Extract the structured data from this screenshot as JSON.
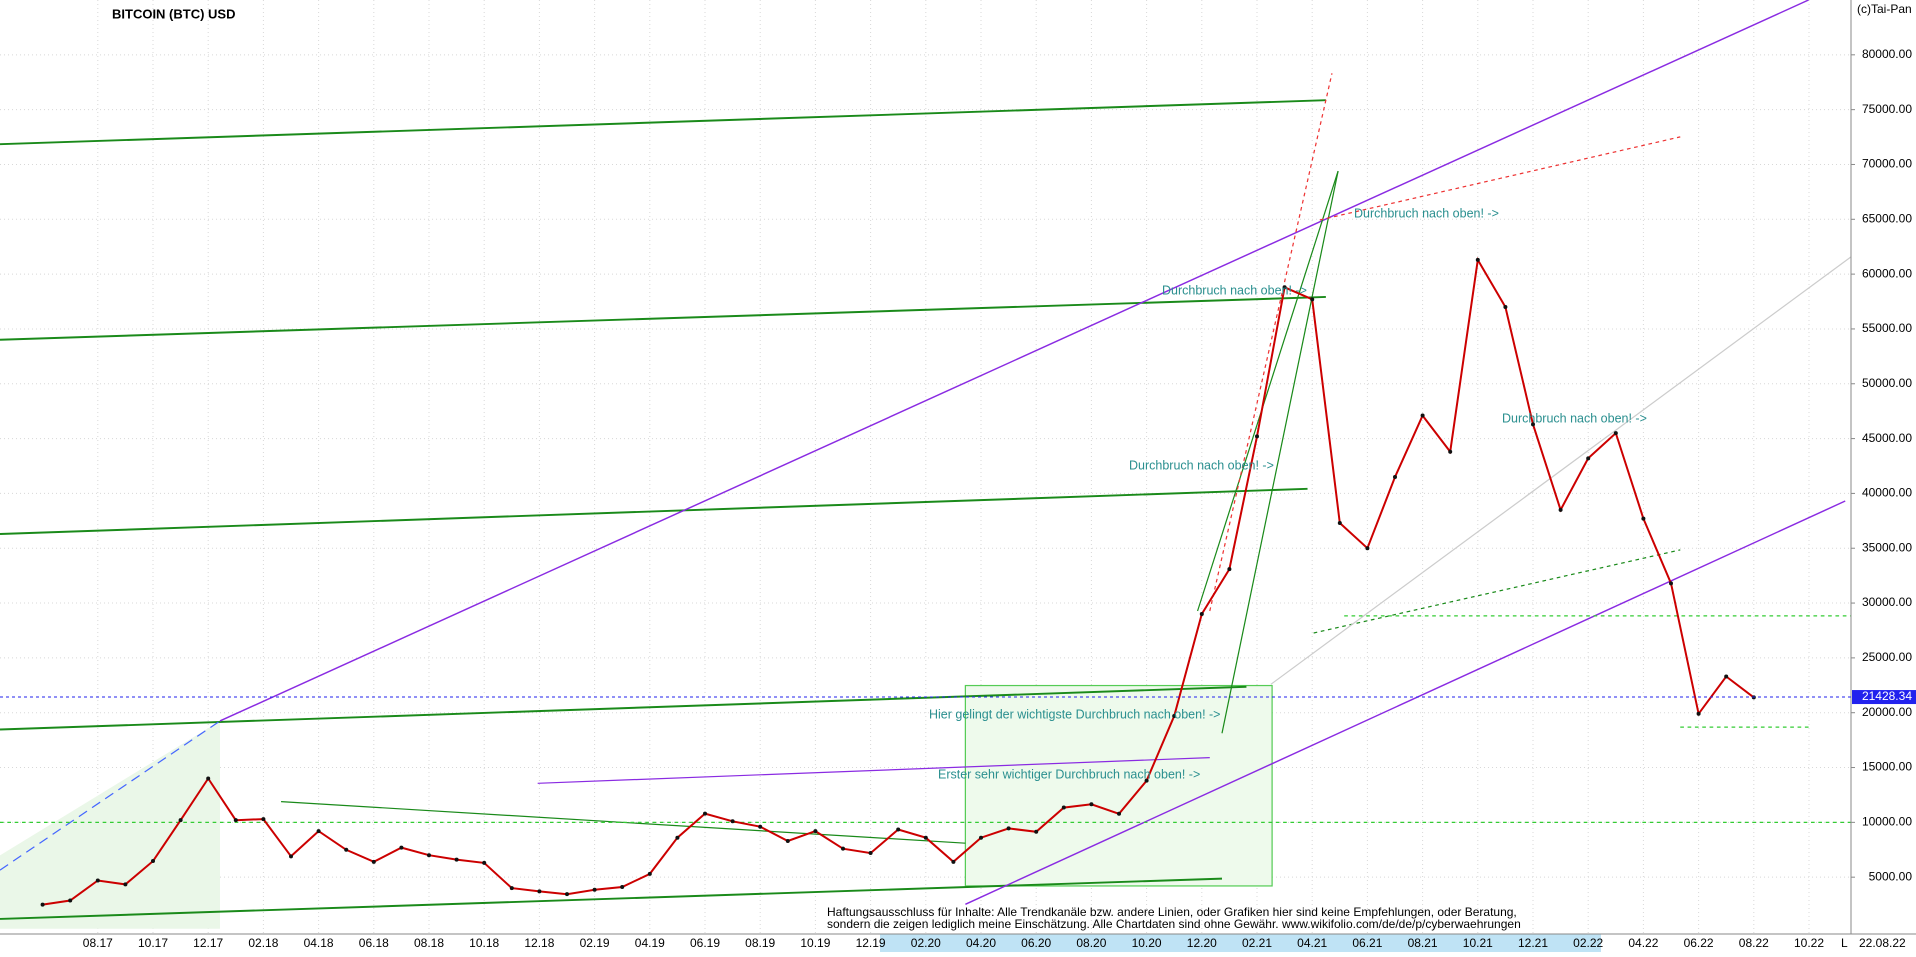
{
  "chart_data": {
    "type": "line",
    "title": "BITCOIN (BTC) USD",
    "source": "(c)Tai-Pan",
    "categories": [
      null,
      null,
      "08.17",
      null,
      "10.17",
      null,
      "12.17",
      null,
      "02.18",
      null,
      "04.18",
      null,
      "06.18",
      null,
      "08.18",
      null,
      "10.18",
      null,
      "12.18",
      null,
      "02.19",
      null,
      "04.19",
      null,
      "06.19",
      null,
      "08.19",
      null,
      "10.19",
      null,
      "12.19",
      null,
      "02.20",
      null,
      "04.20",
      null,
      "06.20",
      null,
      "08.20",
      null,
      "10.20",
      null,
      "12.20",
      null,
      "02.21",
      null,
      "04.21",
      null,
      "06.21",
      null,
      "08.21",
      null,
      "10.21",
      null,
      "12.21",
      null,
      "02.22",
      null,
      "04.22",
      null,
      "06.22",
      null,
      "08.22",
      null,
      "10.22"
    ],
    "values": [
      2500,
      2870,
      4700,
      4340,
      6470,
      10200,
      14000,
      10200,
      10300,
      6900,
      9200,
      7500,
      6400,
      7700,
      7000,
      6600,
      6300,
      4000,
      3700,
      3450,
      3850,
      4100,
      5300,
      8600,
      10800,
      10100,
      9600,
      8300,
      9200,
      7600,
      7200,
      9350,
      8600,
      6400,
      8600,
      9450,
      9140,
      11350,
      11650,
      10780,
      13800,
      19700,
      29000,
      33100,
      45200,
      58800,
      57700,
      37300,
      35000,
      41500,
      47100,
      43800,
      61300,
      57000,
      46300,
      38500,
      43200,
      45500,
      37700,
      31800,
      19900,
      23300,
      21400,
      null,
      null
    ],
    "color": "#cc0000",
    "ylim": [
      0,
      85000
    ],
    "yticks": [
      {
        "value": 5000,
        "label": "5000.00"
      },
      {
        "value": 10000,
        "label": "10000.00"
      },
      {
        "value": 15000,
        "label": "15000.00"
      },
      {
        "value": 20000,
        "label": "20000.00"
      },
      {
        "value": 25000,
        "label": "25000.00"
      },
      {
        "value": 30000,
        "label": "30000.00"
      },
      {
        "value": 35000,
        "label": "35000.00"
      },
      {
        "value": 40000,
        "label": "40000.00"
      },
      {
        "value": 45000,
        "label": "45000.00"
      },
      {
        "value": 50000,
        "label": "50000.00"
      },
      {
        "value": 55000,
        "label": "55000.00"
      },
      {
        "value": 60000,
        "label": "60000.00"
      },
      {
        "value": 65000,
        "label": "65000.00"
      },
      {
        "value": 70000,
        "label": "70000.00"
      },
      {
        "value": 75000,
        "label": "75000.00"
      },
      {
        "value": 80000,
        "label": "80000.00"
      }
    ],
    "last_price": 21428.34,
    "last_date": "22.08.22",
    "scale_mode": "L",
    "grid": true,
    "annotations": [
      "Durchbruch nach oben! ->",
      "Durchbruch nach oben! ->",
      "Durchbruch nach oben! ->",
      "Durchbruch nach oben! ->",
      "Hier gelingt der wichtigste Durchbruch nach oben! ->",
      "Erster sehr wichtiger Durchbruch nach oben! ->"
    ],
    "disclaimer": [
      "Haftungsausschluss für Inhalte: Alle Trendkanäle bzw. andere Linien, oder Grafiken hier sind keine Empfehlungen, oder Beratung,",
      "sondern die zeigen lediglich meine  Einschätzung. Alle Chartdaten sind ohne Gewähr.  www.wikifolio.com/de/de/p/cyberwaehrungen"
    ]
  }
}
